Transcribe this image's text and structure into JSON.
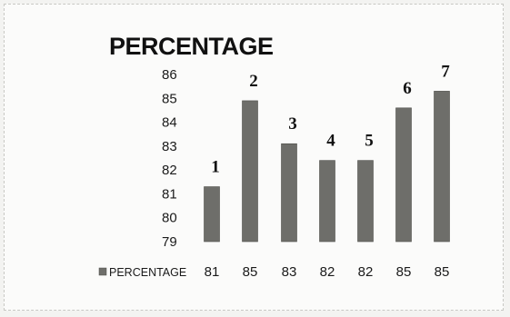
{
  "chart_data": {
    "type": "bar",
    "title": "PERCENTAGE",
    "categories": [
      "1",
      "2",
      "3",
      "4",
      "5",
      "6",
      "7"
    ],
    "series": [
      {
        "name": "PERCENTAGE",
        "values": [
          81,
          85,
          83,
          82,
          82,
          85,
          85
        ]
      }
    ],
    "plotted_heights": [
      81.3,
      84.9,
      83.1,
      82.4,
      82.4,
      84.6,
      85.3
    ],
    "yticks": [
      "79",
      "80",
      "81",
      "82",
      "83",
      "84",
      "85",
      "86"
    ],
    "ylim": [
      79,
      86
    ],
    "grid": false,
    "legend": "bottom-left, inline with data table",
    "bar_color": "#6e6e6a"
  }
}
